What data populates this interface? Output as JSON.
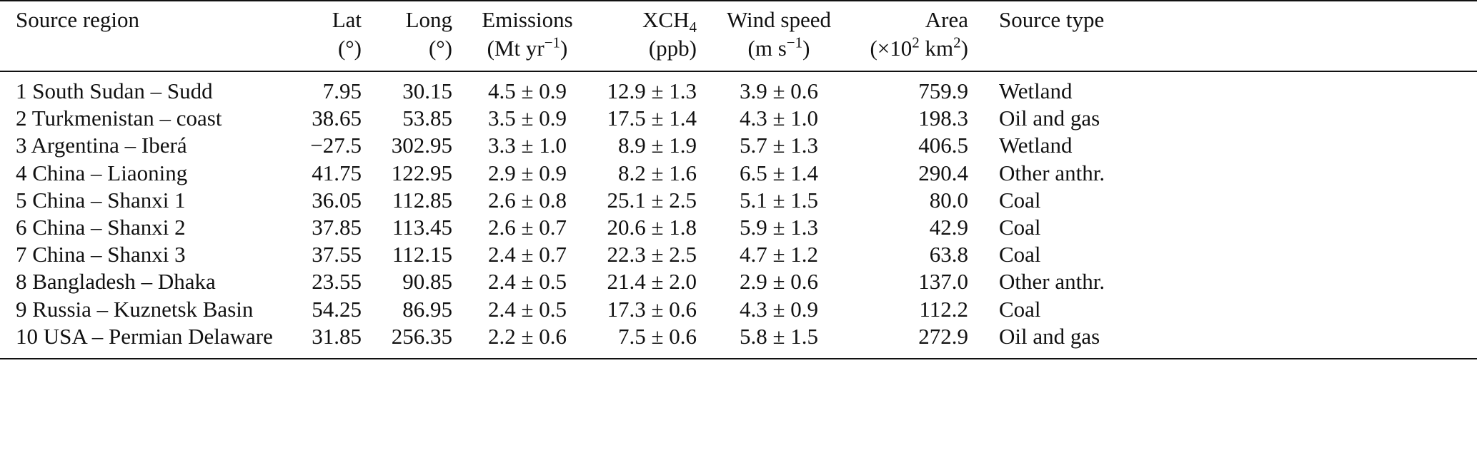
{
  "table": {
    "headers": [
      {
        "lines": [
          [
            {
              "text": "Source region"
            }
          ]
        ]
      },
      {
        "lines": [
          [
            {
              "text": "Lat"
            }
          ],
          [
            {
              "text": "(°)"
            }
          ]
        ]
      },
      {
        "lines": [
          [
            {
              "text": "Long"
            }
          ],
          [
            {
              "text": "(°)"
            }
          ]
        ]
      },
      {
        "lines": [
          [
            {
              "text": "Emissions"
            }
          ],
          [
            {
              "text": "(Mt yr"
            },
            {
              "sup": "−1"
            },
            {
              "text": ")"
            }
          ]
        ]
      },
      {
        "lines": [
          [
            {
              "text": "XCH"
            },
            {
              "sub": "4"
            }
          ],
          [
            {
              "text": "(ppb)"
            }
          ]
        ]
      },
      {
        "lines": [
          [
            {
              "text": "Wind speed"
            }
          ],
          [
            {
              "text": "(m s"
            },
            {
              "sup": "−1"
            },
            {
              "text": ")"
            }
          ]
        ]
      },
      {
        "lines": [
          [
            {
              "text": "Area"
            }
          ],
          [
            {
              "text": "(×10"
            },
            {
              "sup": "2"
            },
            {
              "text": " km"
            },
            {
              "sup": "2"
            },
            {
              "text": ")"
            }
          ]
        ]
      },
      {
        "lines": [
          [
            {
              "text": "Source type"
            }
          ]
        ]
      }
    ],
    "rows": [
      [
        "1 South Sudan – Sudd",
        "7.95",
        "30.15",
        "4.5 ± 0.9",
        "12.9 ± 1.3",
        "3.9 ± 0.6",
        "759.9",
        "Wetland"
      ],
      [
        "2 Turkmenistan – coast",
        "38.65",
        "53.85",
        "3.5 ± 0.9",
        "17.5 ± 1.4",
        "4.3 ± 1.0",
        "198.3",
        "Oil and gas"
      ],
      [
        "3 Argentina – Iberá",
        "−27.5",
        "302.95",
        "3.3 ± 1.0",
        "8.9 ± 1.9",
        "5.7 ± 1.3",
        "406.5",
        "Wetland"
      ],
      [
        "4 China – Liaoning",
        "41.75",
        "122.95",
        "2.9 ± 0.9",
        "8.2 ± 1.6",
        "6.5 ± 1.4",
        "290.4",
        "Other anthr."
      ],
      [
        "5 China – Shanxi 1",
        "36.05",
        "112.85",
        "2.6 ± 0.8",
        "25.1 ± 2.5",
        "5.1 ± 1.5",
        "80.0",
        "Coal"
      ],
      [
        "6 China – Shanxi 2",
        "37.85",
        "113.45",
        "2.6 ± 0.7",
        "20.6 ± 1.8",
        "5.9 ± 1.3",
        "42.9",
        "Coal"
      ],
      [
        "7 China – Shanxi 3",
        "37.55",
        "112.15",
        "2.4 ± 0.7",
        "22.3 ± 2.5",
        "4.7 ± 1.2",
        "63.8",
        "Coal"
      ],
      [
        "8 Bangladesh – Dhaka",
        "23.55",
        "90.85",
        "2.4 ± 0.5",
        "21.4 ± 2.0",
        "2.9 ± 0.6",
        "137.0",
        "Other anthr."
      ],
      [
        "9 Russia – Kuznetsk Basin",
        "54.25",
        "86.95",
        "2.4 ± 0.5",
        "17.3 ± 0.6",
        "4.3 ± 0.9",
        "112.2",
        "Coal"
      ],
      [
        "10 USA – Permian Delaware",
        "31.85",
        "256.35",
        "2.2 ± 0.6",
        "7.5 ± 0.6",
        "5.8 ± 1.5",
        "272.9",
        "Oil and gas"
      ]
    ]
  }
}
